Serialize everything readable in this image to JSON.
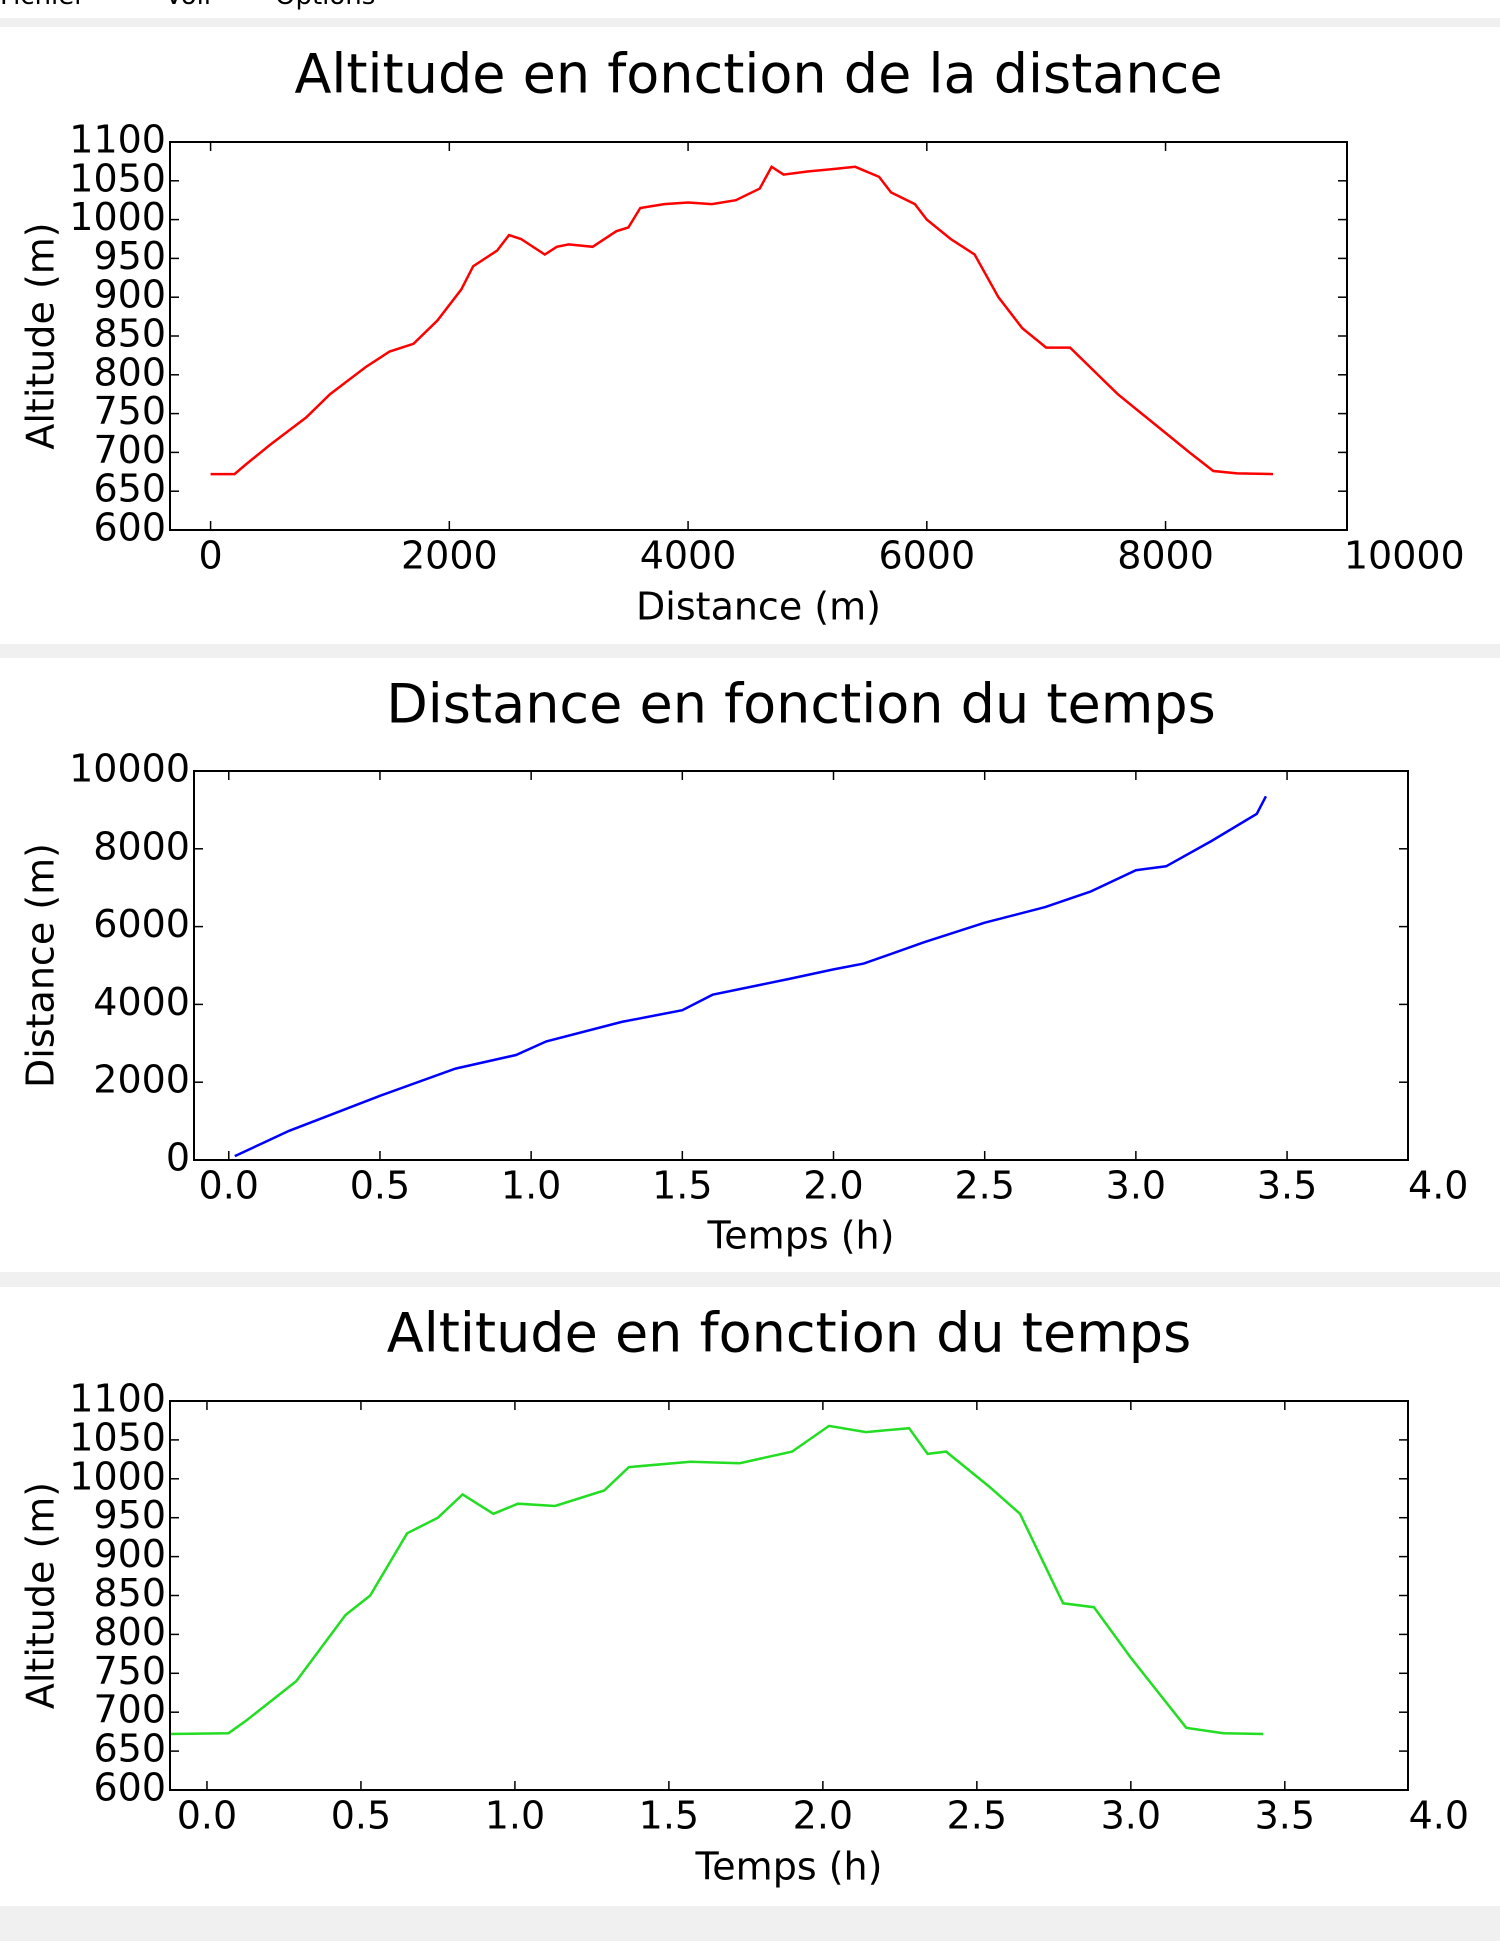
{
  "menu": [
    "Fichier",
    "Voir",
    "Options"
  ],
  "chart_data": [
    {
      "type": "line",
      "title": "Altitude en fonction de la distance",
      "x_label": "Distance (m)",
      "y_label": "Altitude (m)",
      "xlim": [
        -340,
        9520
      ],
      "ylim": [
        600,
        1100
      ],
      "xticks": [
        0,
        2000,
        4000,
        6000,
        8000,
        10000
      ],
      "yticks": [
        600,
        650,
        700,
        750,
        800,
        850,
        900,
        950,
        1000,
        1050,
        1100
      ],
      "series": [
        {
          "name": "Altitude",
          "color": "#ff0000",
          "x": [
            0,
            200,
            300,
            500,
            800,
            1000,
            1300,
            1500,
            1700,
            1900,
            2100,
            2200,
            2400,
            2500,
            2600,
            2800,
            2900,
            3000,
            3200,
            3400,
            3500,
            3600,
            3800,
            4000,
            4200,
            4400,
            4600,
            4700,
            4800,
            5000,
            5200,
            5400,
            5600,
            5700,
            5900,
            6000,
            6200,
            6400,
            6600,
            6800,
            7000,
            7200,
            7400,
            7600,
            7800,
            8000,
            8200,
            8400,
            8600,
            8900
          ],
          "values": [
            672,
            672,
            685,
            710,
            745,
            775,
            810,
            830,
            840,
            870,
            910,
            940,
            960,
            980,
            975,
            955,
            965,
            968,
            965,
            985,
            990,
            1015,
            1020,
            1022,
            1020,
            1025,
            1040,
            1068,
            1058,
            1062,
            1065,
            1068,
            1055,
            1035,
            1020,
            1000,
            975,
            955,
            900,
            860,
            835,
            835,
            805,
            775,
            750,
            725,
            700,
            676,
            673,
            672
          ]
        }
      ]
    },
    {
      "type": "line",
      "title": "Distance en fonction du temps",
      "x_label": "Temps (h)",
      "y_label": "Distance (m)",
      "xlim": [
        -0.115,
        3.9
      ],
      "ylim": [
        0,
        10000
      ],
      "xticks": [
        {
          "value": 0,
          "label": "0.0"
        },
        0.5,
        {
          "value": 1,
          "label": "1.0"
        },
        1.5,
        {
          "value": 2,
          "label": "2.0"
        },
        2.5,
        {
          "value": 3,
          "label": "3.0"
        },
        3.5,
        {
          "value": 4,
          "label": "4.0"
        }
      ],
      "yticks": [
        0,
        2000,
        4000,
        6000,
        8000,
        10000
      ],
      "series": [
        {
          "name": "Distance",
          "color": "#0000ff",
          "x": [
            0.02,
            0.2,
            0.5,
            0.75,
            0.95,
            1.05,
            1.3,
            1.5,
            1.6,
            1.85,
            2.0,
            2.1,
            2.3,
            2.5,
            2.7,
            2.85,
            3.0,
            3.1,
            3.25,
            3.4,
            3.43
          ],
          "values": [
            100,
            750,
            1650,
            2350,
            2700,
            3050,
            3550,
            3850,
            4250,
            4650,
            4900,
            5050,
            5600,
            6100,
            6500,
            6900,
            7450,
            7550,
            8200,
            8900,
            9350
          ]
        }
      ]
    },
    {
      "type": "line",
      "title": "Altitude en fonction du temps",
      "x_label": "Temps (h)",
      "y_label": "Altitude (m)",
      "xlim": [
        -0.12,
        3.9
      ],
      "ylim": [
        600,
        1100
      ],
      "xticks": [
        {
          "value": 0,
          "label": "0.0"
        },
        0.5,
        {
          "value": 1,
          "label": "1.0"
        },
        1.5,
        {
          "value": 2,
          "label": "2.0"
        },
        2.5,
        {
          "value": 3,
          "label": "3.0"
        },
        3.5,
        {
          "value": 4,
          "label": "4.0"
        }
      ],
      "yticks": [
        600,
        650,
        700,
        750,
        800,
        850,
        900,
        950,
        1000,
        1050,
        1100
      ],
      "series": [
        {
          "name": "Altitude",
          "color": "#22dd22",
          "x": [
            -0.12,
            0.07,
            0.13,
            0.29,
            0.45,
            0.53,
            0.65,
            0.75,
            0.83,
            0.93,
            1.01,
            1.13,
            1.29,
            1.37,
            1.57,
            1.73,
            1.9,
            2.02,
            2.14,
            2.28,
            2.34,
            2.4,
            2.54,
            2.64,
            2.78,
            2.88,
            3.0,
            3.18,
            3.3,
            3.43
          ],
          "values": [
            672,
            673,
            690,
            740,
            825,
            850,
            930,
            950,
            980,
            955,
            968,
            965,
            985,
            1015,
            1022,
            1020,
            1035,
            1068,
            1060,
            1065,
            1032,
            1035,
            990,
            955,
            840,
            835,
            770,
            680,
            673,
            672
          ]
        }
      ]
    }
  ]
}
